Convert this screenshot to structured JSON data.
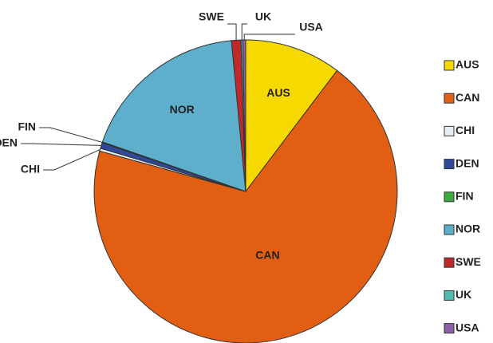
{
  "chart_data": {
    "type": "pie",
    "categories": [
      "AUS",
      "CAN",
      "CHI",
      "DEN",
      "FIN",
      "NOR",
      "SWE",
      "UK",
      "USA"
    ],
    "values": [
      10.3,
      69,
      0.3,
      0.6,
      0.1,
      18.2,
      1.0,
      0.2,
      0.3
    ],
    "colors": [
      "#f5d900",
      "#e25e12",
      "#e6edf5",
      "#2f4a9c",
      "#3caa3c",
      "#5eafcb",
      "#c0282c",
      "#4fbab0",
      "#8e5ea8"
    ],
    "legend": "right"
  }
}
